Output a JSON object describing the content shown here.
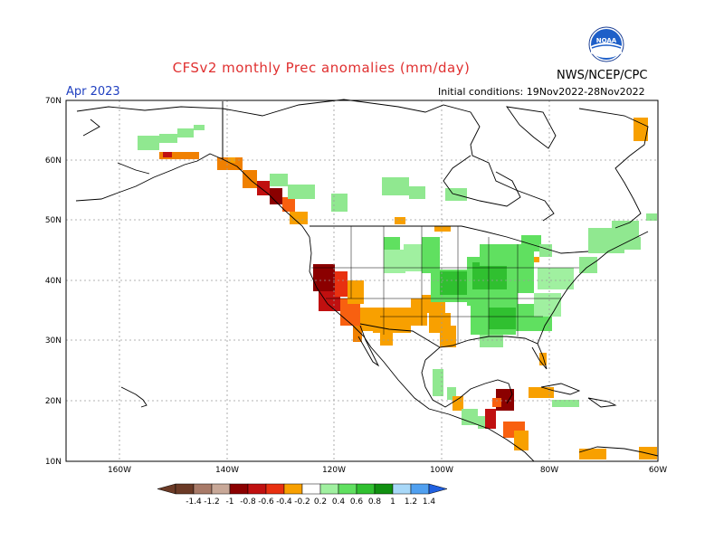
{
  "header": {
    "title": "CFSv2 monthly Prec anomalies (mm/day)",
    "agency": "NWS/NCEP/CPC",
    "month": "Apr 2023",
    "initial_conditions": "Initial conditions: 19Nov2022-28Nov2022",
    "logo_text": "NOAA"
  },
  "map": {
    "lat_labels": [
      "70N",
      "60N",
      "50N",
      "40N",
      "30N",
      "20N",
      "10N"
    ],
    "lon_labels": [
      "160W",
      "140W",
      "120W",
      "100W",
      "80W",
      "60W"
    ],
    "colors": {
      "land_outline": "#000000",
      "grid": "#9a9a9a",
      "dry_strong": "#8b0000",
      "dry": "#f08000",
      "wet": "#44c044",
      "wet_light": "#90e890"
    }
  },
  "colorbar": {
    "labels": [
      "-1.4",
      "-1.2",
      "-1",
      "-0.8",
      "-0.6",
      "-0.4",
      "-0.2",
      "0.2",
      "0.4",
      "0.6",
      "0.8",
      "1",
      "1.2",
      "1.4"
    ],
    "colors": [
      "#6b3a26",
      "#a87a68",
      "#c8a898",
      "#8b0000",
      "#c01010",
      "#e83010",
      "#f86010",
      "#f8a000",
      "#ffffff",
      "#a0f0a0",
      "#60e060",
      "#30c030",
      "#109010",
      "#a8d8f8",
      "#50a0f0",
      "#2060e0"
    ]
  }
}
